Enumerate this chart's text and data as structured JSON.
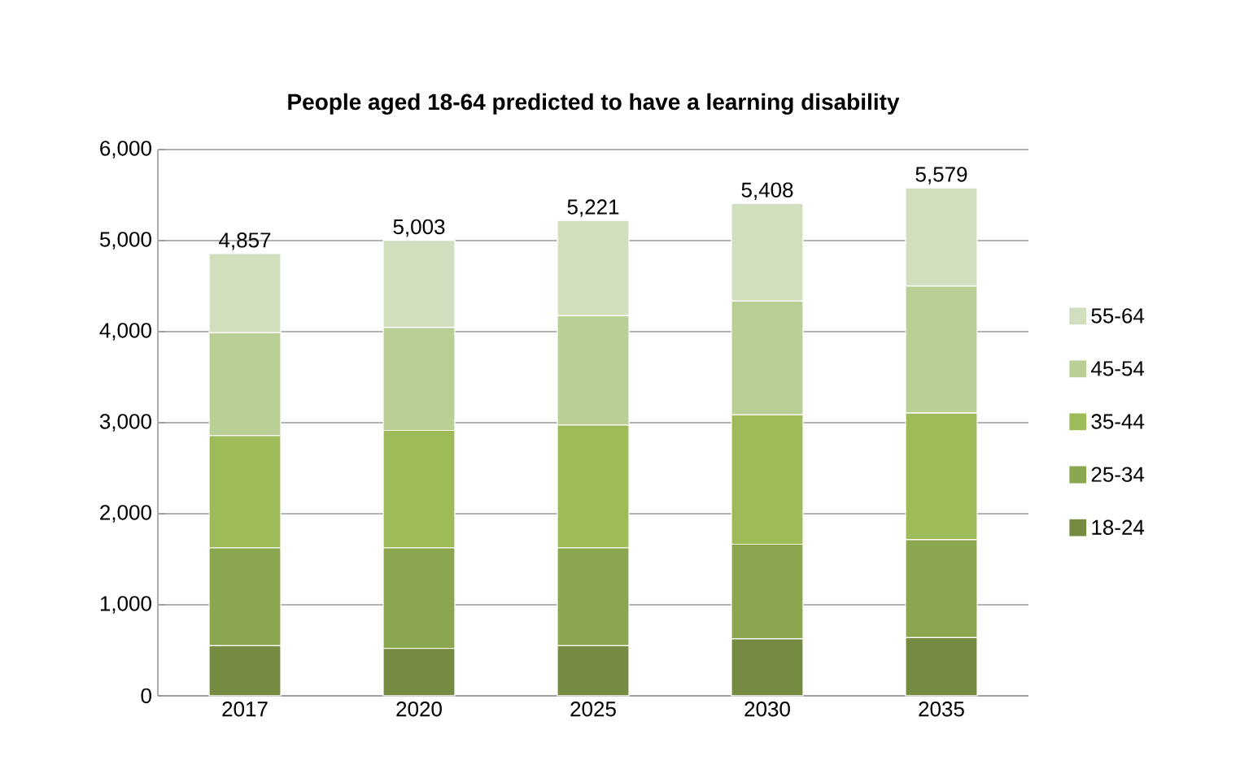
{
  "chart_data": {
    "type": "bar",
    "stacked": true,
    "title": "**People aged 18-64 predicted to have a learning disability**",
    "categories": [
      "2017",
      "2020",
      "2025",
      "2030",
      "2035"
    ],
    "series": [
      {
        "name": "18-24",
        "color": "#768b42",
        "values": [
          550,
          520,
          550,
          625,
          640
        ]
      },
      {
        "name": "25-34",
        "color": "#8aa64e",
        "values": [
          1075,
          1105,
          1075,
          1040,
          1075
        ]
      },
      {
        "name": "35-44",
        "color": "#9dbb59",
        "values": [
          1232,
          1290,
          1350,
          1420,
          1390
        ]
      },
      {
        "name": "45-54",
        "color": "#b9cf96",
        "values": [
          1131,
          1130,
          1200,
          1250,
          1395
        ]
      },
      {
        "name": "55-64",
        "color": "#d2dfbf",
        "values": [
          869,
          958,
          1046,
          1073,
          1079
        ]
      }
    ],
    "totals": [
      "4,857",
      "5,003",
      "5,221",
      "5,408",
      "5,579"
    ],
    "ylim": [
      0,
      6000
    ],
    "yticks": [
      {
        "value": 0,
        "label": "0"
      },
      {
        "value": 1000,
        "label": "1,000"
      },
      {
        "value": 2000,
        "label": "2,000"
      },
      {
        "value": 3000,
        "label": "3,000"
      },
      {
        "value": 4000,
        "label": "4,000"
      },
      {
        "value": 5000,
        "label": "5,000"
      },
      {
        "value": 6000,
        "label": "6,000"
      }
    ],
    "grid": "y",
    "legend": "right"
  }
}
